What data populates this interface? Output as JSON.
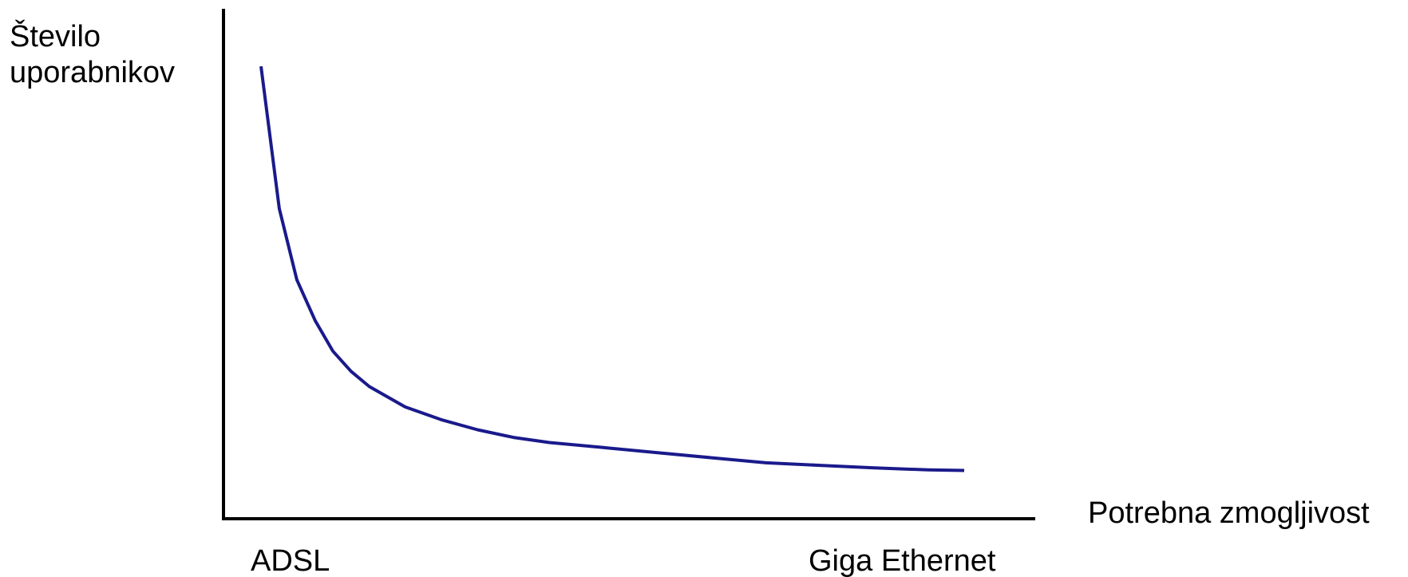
{
  "chart_data": {
    "type": "line",
    "title": "",
    "ylabel_lines": [
      "Število",
      "uporabnikov"
    ],
    "xlabel": "Potrebna zmogljivost",
    "x_tick_labels": [
      "ADSL",
      "Giga Ethernet"
    ],
    "x_axis_shows_numbers": false,
    "y_axis_shows_numbers": false,
    "grid": false,
    "legend": "none",
    "line_color": "#1a1a8c",
    "axis_color": "#000000",
    "xlim": [
      0,
      1
    ],
    "ylim": [
      0,
      1
    ],
    "series": [
      {
        "x": [
          0.0,
          0.026,
          0.051,
          0.077,
          0.102,
          0.128,
          0.154,
          0.205,
          0.256,
          0.308,
          0.359,
          0.41,
          0.487,
          0.564,
          0.641,
          0.718,
          0.795,
          0.872,
          0.949,
          1.0
        ],
        "y": [
          0.89,
          0.61,
          0.47,
          0.39,
          0.33,
          0.29,
          0.26,
          0.22,
          0.195,
          0.175,
          0.16,
          0.15,
          0.14,
          0.13,
          0.12,
          0.11,
          0.105,
          0.1,
          0.096,
          0.095
        ]
      }
    ]
  }
}
